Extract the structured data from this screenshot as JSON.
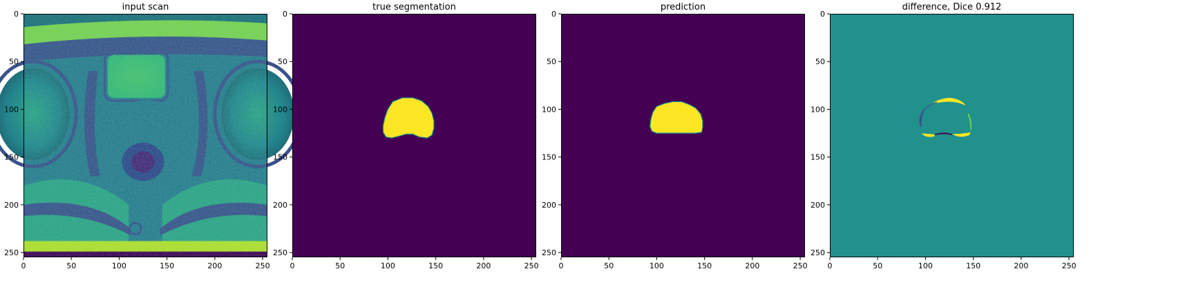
{
  "chart_data": [
    {
      "type": "heatmap",
      "title": "input scan",
      "content": "mri",
      "colormap": "viridis",
      "xlim": [
        0,
        255
      ],
      "ylim": [
        255,
        0
      ],
      "xticks": [
        0,
        50,
        100,
        150,
        200,
        250
      ],
      "yticks": [
        0,
        50,
        100,
        150,
        200,
        250
      ],
      "xtick_labels": [
        "0",
        "50",
        "100",
        "150",
        "200",
        "250"
      ],
      "ytick_labels": [
        "0",
        "50",
        "100",
        "150",
        "200",
        "250"
      ]
    },
    {
      "type": "heatmap",
      "title": "true segmentation",
      "content": "mask",
      "colormap": "viridis",
      "background_value": 0,
      "region_value": 1,
      "region_extent": {
        "x": [
          95,
          148
        ],
        "y": [
          87,
          131
        ]
      },
      "xlim": [
        0,
        255
      ],
      "ylim": [
        255,
        0
      ],
      "xticks": [
        0,
        50,
        100,
        150,
        200,
        250
      ],
      "yticks": [
        0,
        50,
        100,
        150,
        200,
        250
      ],
      "xtick_labels": [
        "0",
        "50",
        "100",
        "150",
        "200",
        "250"
      ],
      "ytick_labels": [
        "0",
        "50",
        "100",
        "150",
        "200",
        "250"
      ]
    },
    {
      "type": "heatmap",
      "title": "prediction",
      "content": "mask",
      "colormap": "viridis",
      "background_value": 0,
      "region_value": 1,
      "region_extent": {
        "x": [
          93,
          148
        ],
        "y": [
          92,
          126
        ]
      },
      "xlim": [
        0,
        255
      ],
      "ylim": [
        255,
        0
      ],
      "xticks": [
        0,
        50,
        100,
        150,
        200,
        250
      ],
      "yticks": [
        0,
        50,
        100,
        150,
        200,
        250
      ],
      "xtick_labels": [
        "0",
        "50",
        "100",
        "150",
        "200",
        "250"
      ],
      "ytick_labels": [
        "0",
        "50",
        "100",
        "150",
        "200",
        "250"
      ]
    },
    {
      "type": "heatmap",
      "title": "difference, Dice 0.912",
      "content": "difference",
      "colormap": "viridis",
      "background_value": 0,
      "value_range": [
        -1,
        1
      ],
      "dice": 0.912,
      "xlim": [
        0,
        255
      ],
      "ylim": [
        255,
        0
      ],
      "xticks": [
        0,
        50,
        100,
        150,
        200,
        250
      ],
      "yticks": [
        0,
        50,
        100,
        150,
        200,
        250
      ],
      "xtick_labels": [
        "0",
        "50",
        "100",
        "150",
        "200",
        "250"
      ],
      "ytick_labels": [
        "0",
        "50",
        "100",
        "150",
        "200",
        "250"
      ]
    }
  ],
  "colors": {
    "viridis_low": "#440154",
    "viridis_mid": "#21918c",
    "viridis_high": "#fde725",
    "viridis_dark_teal": "#1f6e79",
    "viridis_green": "#35b779",
    "viridis_lime": "#6ece58",
    "viridis_blue": "#31688e",
    "viridis_indigo": "#3b528b"
  }
}
